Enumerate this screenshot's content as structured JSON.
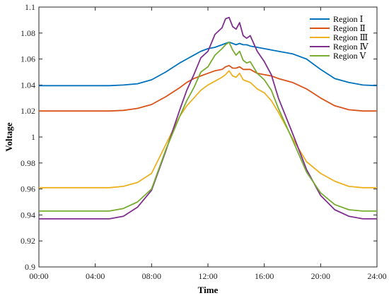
{
  "chart_data": {
    "type": "line",
    "title": "",
    "xlabel": "Time",
    "ylabel": "Voltage",
    "xlim": [
      0,
      24
    ],
    "ylim": [
      0.9,
      1.1
    ],
    "grid": false,
    "legend_position": "top-right",
    "x_ticks": [
      "00:00",
      "04:00",
      "08:00",
      "12:00",
      "16:00",
      "20:00",
      "24:00"
    ],
    "y_ticks": [
      "0.9",
      "0.92",
      "0.94",
      "0.96",
      "0.98",
      "1",
      "1.02",
      "1.04",
      "1.06",
      "1.08",
      "1.1"
    ],
    "x_hours": [
      0,
      1,
      2,
      3,
      4,
      5,
      6,
      7,
      8,
      9,
      10,
      10.5,
      11,
      11.5,
      12,
      12.5,
      13,
      13.25,
      13.5,
      13.75,
      14,
      14.25,
      14.5,
      14.75,
      15,
      15.5,
      16,
      16.5,
      17,
      18,
      19,
      20,
      21,
      22,
      23,
      24
    ],
    "series": [
      {
        "name": "Region Ⅰ",
        "color": "#0072BD",
        "values": [
          1.0395,
          1.0395,
          1.0395,
          1.0395,
          1.0395,
          1.0395,
          1.04,
          1.041,
          1.044,
          1.05,
          1.057,
          1.06,
          1.063,
          1.066,
          1.068,
          1.069,
          1.071,
          1.072,
          1.073,
          1.072,
          1.071,
          1.072,
          1.071,
          1.071,
          1.07,
          1.069,
          1.068,
          1.067,
          1.066,
          1.064,
          1.06,
          1.052,
          1.045,
          1.042,
          1.04,
          1.0395
        ]
      },
      {
        "name": "Region Ⅱ",
        "color": "#D95319",
        "values": [
          1.02,
          1.02,
          1.02,
          1.02,
          1.02,
          1.02,
          1.0205,
          1.022,
          1.025,
          1.031,
          1.038,
          1.042,
          1.045,
          1.047,
          1.049,
          1.051,
          1.052,
          1.054,
          1.055,
          1.053,
          1.053,
          1.054,
          1.052,
          1.052,
          1.052,
          1.049,
          1.048,
          1.047,
          1.045,
          1.042,
          1.037,
          1.03,
          1.024,
          1.021,
          1.02,
          1.02
        ]
      },
      {
        "name": "Region Ⅲ",
        "color": "#EDB120",
        "values": [
          0.961,
          0.961,
          0.961,
          0.961,
          0.961,
          0.961,
          0.962,
          0.965,
          0.972,
          0.994,
          1.016,
          1.024,
          1.03,
          1.036,
          1.04,
          1.043,
          1.046,
          1.048,
          1.051,
          1.047,
          1.046,
          1.049,
          1.044,
          1.043,
          1.042,
          1.037,
          1.034,
          1.028,
          1.019,
          0.999,
          0.981,
          0.972,
          0.966,
          0.962,
          0.961,
          0.961
        ]
      },
      {
        "name": "Region Ⅳ",
        "color": "#7E2F8E",
        "values": [
          0.937,
          0.937,
          0.937,
          0.937,
          0.937,
          0.937,
          0.939,
          0.946,
          0.959,
          0.989,
          1.021,
          1.036,
          1.048,
          1.061,
          1.066,
          1.079,
          1.084,
          1.091,
          1.092,
          1.085,
          1.083,
          1.088,
          1.078,
          1.076,
          1.078,
          1.066,
          1.058,
          1.048,
          1.03,
          1.003,
          0.975,
          0.955,
          0.944,
          0.939,
          0.937,
          0.937
        ]
      },
      {
        "name": "Region Ⅴ",
        "color": "#77AC30",
        "values": [
          0.943,
          0.943,
          0.943,
          0.943,
          0.943,
          0.943,
          0.945,
          0.95,
          0.96,
          0.99,
          1.016,
          1.028,
          1.038,
          1.05,
          1.054,
          1.063,
          1.068,
          1.071,
          1.073,
          1.067,
          1.063,
          1.066,
          1.059,
          1.057,
          1.058,
          1.049,
          1.044,
          1.036,
          1.022,
          0.998,
          0.973,
          0.957,
          0.948,
          0.944,
          0.943,
          0.943
        ]
      }
    ]
  }
}
